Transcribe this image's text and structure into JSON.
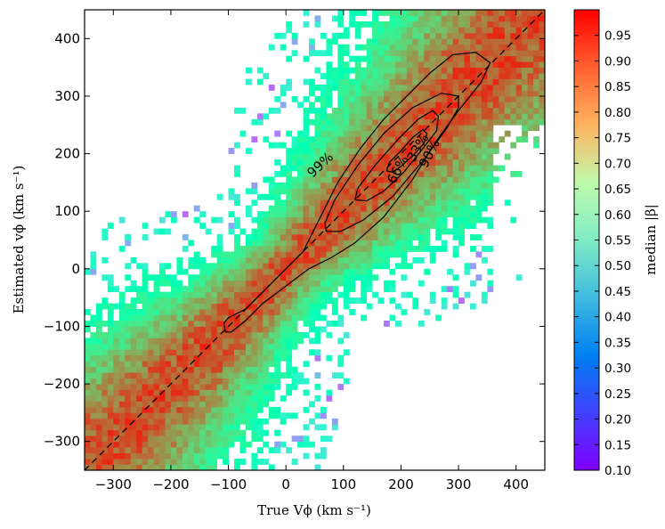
{
  "chart_data": {
    "type": "heatmap",
    "title": "",
    "xlabel": "True Vϕ (km s⁻¹)",
    "ylabel": "Estimated vϕ (km s⁻¹)",
    "xlim": [
      -350,
      450
    ],
    "ylim": [
      -350,
      450
    ],
    "xticks": [
      -300,
      -200,
      -100,
      0,
      100,
      200,
      300,
      400
    ],
    "yticks": [
      -300,
      -200,
      -100,
      0,
      100,
      200,
      300,
      400
    ],
    "xtick_labels": [
      "−300",
      "−200",
      "−100",
      "0",
      "100",
      "200",
      "300",
      "400"
    ],
    "ytick_labels": [
      "−300",
      "−200",
      "−100",
      "0",
      "100",
      "200",
      "300",
      "400"
    ],
    "bin_size": 10,
    "reference_line": {
      "style": "dashed",
      "x": [
        -350,
        450
      ],
      "y": [
        -350,
        450
      ],
      "color": "#000000"
    },
    "colorbar": {
      "label": "median |β|",
      "range": [
        0.1,
        1.0
      ],
      "colormap": "rainbow",
      "ticks": [
        0.1,
        0.15,
        0.2,
        0.25,
        0.3,
        0.35,
        0.4,
        0.45,
        0.5,
        0.55,
        0.6,
        0.65,
        0.7,
        0.75,
        0.8,
        0.85,
        0.9,
        0.95
      ],
      "tick_labels": [
        "0.10",
        "0.15",
        "0.20",
        "0.25",
        "0.30",
        "0.35",
        "0.40",
        "0.45",
        "0.50",
        "0.55",
        "0.60",
        "0.65",
        "0.70",
        "0.75",
        "0.80",
        "0.85",
        "0.90",
        "0.95"
      ]
    },
    "contours": [
      {
        "label": "99%",
        "label_at": [
          60,
          180
        ],
        "label_rotation": -43,
        "points": [
          [
            -105,
            -110
          ],
          [
            -108,
            -95
          ],
          [
            -100,
            -85
          ],
          [
            -70,
            -70
          ],
          [
            -40,
            -40
          ],
          [
            -10,
            -10
          ],
          [
            30,
            30
          ],
          [
            60,
            90
          ],
          [
            90,
            150
          ],
          [
            130,
            210
          ],
          [
            170,
            260
          ],
          [
            210,
            300
          ],
          [
            250,
            340
          ],
          [
            290,
            372
          ],
          [
            330,
            376
          ],
          [
            355,
            358
          ],
          [
            340,
            325
          ],
          [
            300,
            275
          ],
          [
            260,
            220
          ],
          [
            220,
            155
          ],
          [
            170,
            90
          ],
          [
            120,
            45
          ],
          [
            80,
            20
          ],
          [
            40,
            0
          ],
          [
            0,
            -30
          ],
          [
            -40,
            -60
          ],
          [
            -70,
            -90
          ],
          [
            -95,
            -110
          ],
          [
            -105,
            -110
          ]
        ]
      },
      {
        "label": "90%",
        "label_at": [
          250,
          200
        ],
        "label_rotation": -63,
        "points": [
          [
            70,
            65
          ],
          [
            68,
            80
          ],
          [
            85,
            120
          ],
          [
            125,
            180
          ],
          [
            170,
            235
          ],
          [
            220,
            280
          ],
          [
            270,
            305
          ],
          [
            300,
            300
          ],
          [
            300,
            280
          ],
          [
            280,
            245
          ],
          [
            240,
            190
          ],
          [
            185,
            125
          ],
          [
            135,
            85
          ],
          [
            95,
            65
          ],
          [
            70,
            65
          ]
        ]
      },
      {
        "label": "66%",
        "label_at": [
          195,
          172
        ],
        "label_rotation": -62,
        "points": [
          [
            120,
            120
          ],
          [
            125,
            140
          ],
          [
            155,
            180
          ],
          [
            195,
            225
          ],
          [
            230,
            260
          ],
          [
            255,
            275
          ],
          [
            265,
            265
          ],
          [
            262,
            240
          ],
          [
            235,
            205
          ],
          [
            205,
            168
          ],
          [
            170,
            135
          ],
          [
            140,
            118
          ],
          [
            120,
            120
          ]
        ]
      },
      {
        "label": "33%",
        "label_at": [
          230,
          210
        ],
        "label_rotation": -60,
        "points": [
          [
            175,
            170
          ],
          [
            180,
            185
          ],
          [
            200,
            205
          ],
          [
            220,
            228
          ],
          [
            238,
            242
          ],
          [
            245,
            235
          ],
          [
            240,
            218
          ],
          [
            222,
            198
          ],
          [
            200,
            178
          ],
          [
            185,
            168
          ],
          [
            175,
            170
          ]
        ]
      }
    ],
    "description_of_structure": "2D histogram of median |β| versus true and estimated vϕ; high values (red, ~0.9) along the one-to-one line, falling to green/cyan (~0.5) away from it, sparse blue (~0.3) outliers at large scatter."
  }
}
